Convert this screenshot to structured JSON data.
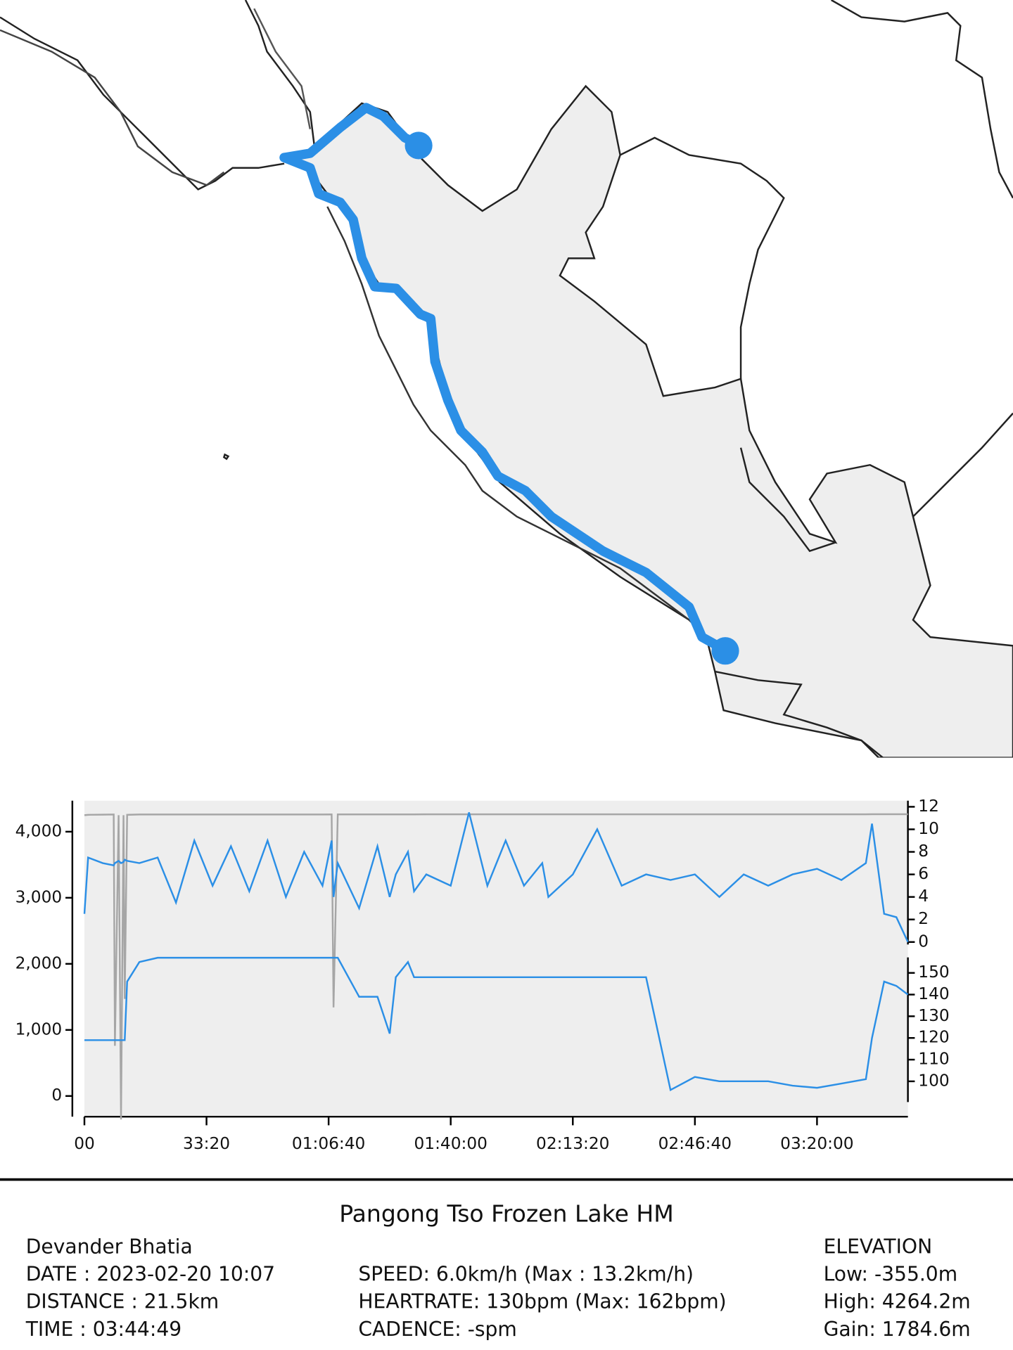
{
  "chart_data": {
    "type": "line",
    "x": [
      0,
      60,
      300,
      480,
      500,
      560,
      600,
      640,
      660,
      700,
      900,
      1200,
      1500,
      1800,
      2100,
      2400,
      2700,
      3000,
      3300,
      3600,
      3900,
      4050,
      4080,
      4150,
      4500,
      4800,
      5000,
      5100,
      5300,
      5400,
      5600,
      6000,
      6300,
      6600,
      6900,
      7200,
      7500,
      7600,
      8000,
      8400,
      8800,
      9200,
      9600,
      10000,
      10400,
      10800,
      11200,
      11600,
      12000,
      12400,
      12800,
      12900,
      13100,
      13300,
      13489
    ],
    "xlim": [
      0,
      13489
    ],
    "xticks": [
      {
        "value": 0,
        "label": "00"
      },
      {
        "value": 2000,
        "label": "33:20"
      },
      {
        "value": 4000,
        "label": "01:06:40"
      },
      {
        "value": 6000,
        "label": "01:40:00"
      },
      {
        "value": 8000,
        "label": "02:13:20"
      },
      {
        "value": 10000,
        "label": "02:46:40"
      },
      {
        "value": 12000,
        "label": "03:20:00"
      }
    ],
    "ylim": [
      -313,
      4469
    ],
    "yticks": [
      0,
      {
        "value": 1000,
        "label": "1,000"
      },
      {
        "value": 2000,
        "label": "2,000"
      },
      {
        "value": 3000,
        "label": "3,000"
      },
      {
        "value": 4000,
        "label": "4,000"
      }
    ],
    "y2lim": [
      -15.5,
      12.54
    ],
    "y2ticks": [
      0,
      2,
      4,
      6,
      8,
      10,
      12
    ],
    "y3lim": [
      83.7,
      229.4
    ],
    "y3ticks": [
      100,
      110,
      120,
      130,
      140,
      150
    ],
    "series": [
      {
        "color": "#a6a6a6",
        "axis": "y",
        "values": [
          4250,
          4255,
          4258,
          4260,
          760,
          4250,
          -355,
          4250,
          1470,
          4255,
          4260,
          4260,
          4260,
          4260,
          4260,
          4260,
          4260,
          4260,
          4260,
          4260,
          4260,
          4262,
          1340,
          4262,
          4262,
          4262,
          4262,
          4262,
          4262,
          4262,
          4263,
          4263,
          4263,
          4263,
          4263,
          4263,
          4263,
          4263,
          4263,
          4263,
          4263,
          4263,
          4263,
          4263,
          4263,
          4263,
          4263,
          4263,
          4263,
          4263,
          4263,
          4264,
          4264,
          4264,
          4264.2
        ]
      },
      {
        "color": "#2b8fe6",
        "axis": "y2",
        "values": [
          2.5,
          7.5,
          7,
          6.8,
          7,
          7.2,
          7,
          7.1,
          7.3,
          7.2,
          7,
          7.5,
          3.5,
          9,
          5,
          8.5,
          4.5,
          9,
          4,
          8,
          5,
          9,
          4,
          7,
          3,
          8.5,
          4,
          6,
          8,
          4.5,
          6,
          5,
          11.5,
          5,
          9,
          5,
          7,
          4,
          6,
          10,
          5,
          6,
          5.5,
          6,
          4,
          6,
          5,
          6,
          6.5,
          5.5,
          7,
          10.5,
          2.5,
          2.2,
          0
        ]
      },
      {
        "color": "#2b8fe6",
        "axis": "y3",
        "values": [
          119,
          119,
          119,
          119,
          119,
          119,
          119,
          119,
          119,
          146,
          155,
          157,
          157,
          157,
          157,
          157,
          157,
          157,
          157,
          157,
          157,
          157,
          157,
          157,
          139,
          139,
          122,
          148,
          155,
          148,
          148,
          148,
          148,
          148,
          148,
          148,
          148,
          148,
          148,
          148,
          148,
          148,
          96,
          102,
          100,
          100,
          100,
          98,
          97,
          99,
          101,
          120,
          146,
          144,
          140
        ]
      }
    ]
  },
  "summary": {
    "title": "Pangong Tso Frozen Lake HM",
    "name": "Devander Bhatia",
    "date": "DATE : 2023-02-20 10:07",
    "distance": "DISTANCE : 21.5km",
    "time": "TIME : 03:44:49",
    "speed": "SPEED: 6.0km/h (Max : 13.2km/h)",
    "heartrate": "HEARTRATE: 130bpm (Max: 162bpm)",
    "cadence": "CADENCE: -spm",
    "elevation_heading": "ELEVATION",
    "low": "Low: -355.0m",
    "high": "High: 4264.2m",
    "gain": "Gain: 1784.6m"
  }
}
